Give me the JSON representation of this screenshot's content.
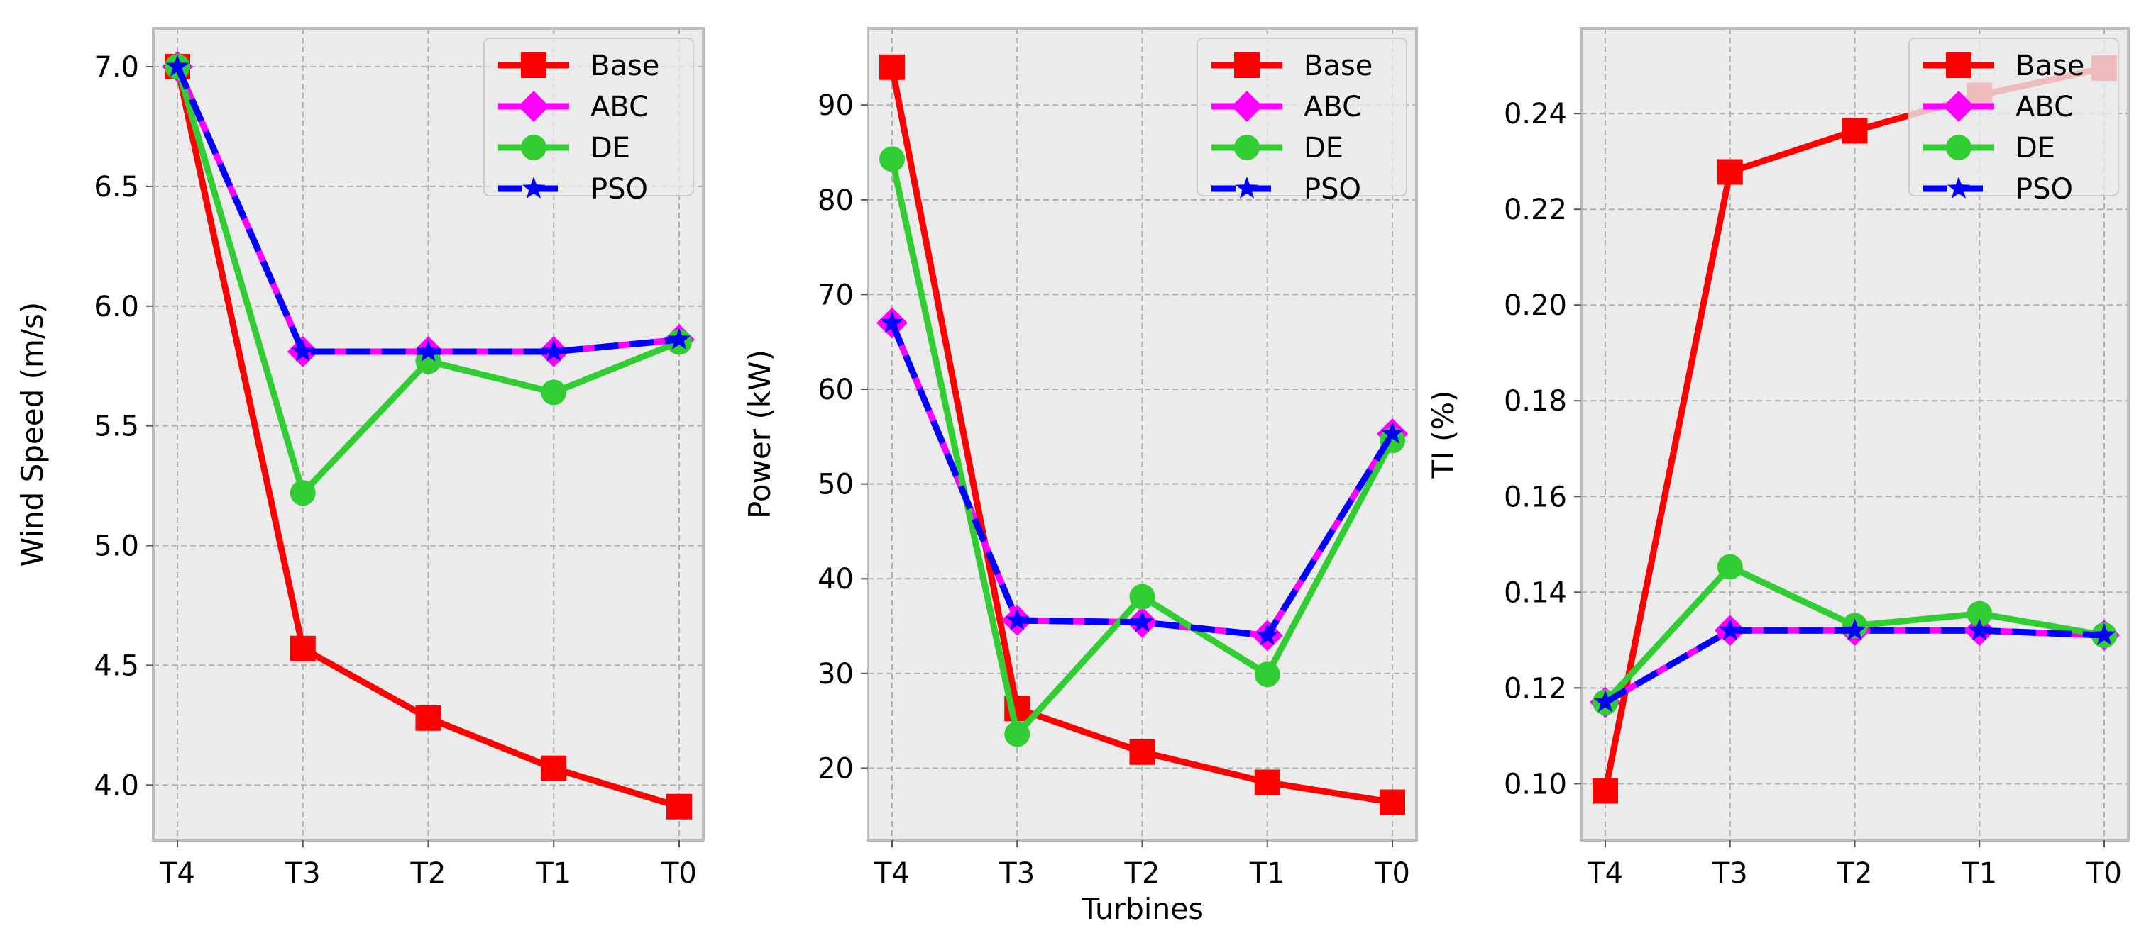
{
  "figure": {
    "xlabel_shared": "Turbines"
  },
  "colors": {
    "background": "#ebebeb",
    "grid": "#b0b0b0",
    "spine": "#bcbcbc",
    "Base": "#ff0000",
    "ABC": "#ff00ff",
    "DE": "#32cd32",
    "PSO": "#0000ff"
  },
  "legend_labels": [
    "Base",
    "ABC",
    "DE",
    "PSO"
  ],
  "chart_data": [
    {
      "type": "line",
      "title": "",
      "xlabel": "",
      "ylabel": "Wind Speed (m/s)",
      "categories": [
        "T4",
        "T3",
        "T2",
        "T1",
        "T0"
      ],
      "ylim": [
        3.77,
        7.16
      ],
      "yticks": [
        "4.0",
        "4.5",
        "5.0",
        "5.5",
        "6.0",
        "6.5",
        "7.0"
      ],
      "ytick_values": [
        4.0,
        4.5,
        5.0,
        5.5,
        6.0,
        6.5,
        7.0
      ],
      "grid": true,
      "legend": "top-right",
      "series": [
        {
          "name": "Base",
          "marker": "square",
          "style": "solid",
          "values": [
            7.0,
            4.57,
            4.28,
            4.07,
            3.91
          ]
        },
        {
          "name": "ABC",
          "marker": "diamond",
          "style": "solid",
          "values": [
            7.0,
            5.81,
            5.81,
            5.81,
            5.86
          ]
        },
        {
          "name": "DE",
          "marker": "circle",
          "style": "solid",
          "values": [
            7.0,
            5.22,
            5.77,
            5.64,
            5.85
          ]
        },
        {
          "name": "PSO",
          "marker": "star",
          "style": "dashed",
          "values": [
            7.0,
            5.81,
            5.81,
            5.81,
            5.86
          ]
        }
      ]
    },
    {
      "type": "line",
      "title": "",
      "xlabel": "Turbines",
      "ylabel": "Power (kW)",
      "categories": [
        "T4",
        "T3",
        "T2",
        "T1",
        "T0"
      ],
      "ylim": [
        12.4,
        98.1
      ],
      "yticks": [
        "20",
        "30",
        "40",
        "50",
        "60",
        "70",
        "80",
        "90"
      ],
      "ytick_values": [
        20,
        30,
        40,
        50,
        60,
        70,
        80,
        90
      ],
      "grid": true,
      "legend": "top-right",
      "series": [
        {
          "name": "Base",
          "marker": "square",
          "style": "solid",
          "values": [
            94.0,
            26.3,
            21.7,
            18.5,
            16.4
          ]
        },
        {
          "name": "ABC",
          "marker": "diamond",
          "style": "solid",
          "values": [
            67.0,
            35.6,
            35.4,
            34.0,
            55.3
          ]
        },
        {
          "name": "DE",
          "marker": "circle",
          "style": "solid",
          "values": [
            84.3,
            23.6,
            38.1,
            29.9,
            54.6
          ]
        },
        {
          "name": "PSO",
          "marker": "star",
          "style": "dashed",
          "values": [
            67.0,
            35.6,
            35.4,
            34.0,
            55.3
          ]
        }
      ]
    },
    {
      "type": "line",
      "title": "",
      "xlabel": "",
      "ylabel": "TI (%)",
      "categories": [
        "T4",
        "T3",
        "T2",
        "T1",
        "T0"
      ],
      "ylim": [
        0.0882,
        0.2578
      ],
      "yticks": [
        "0.10",
        "0.12",
        "0.14",
        "0.16",
        "0.18",
        "0.20",
        "0.22",
        "0.24"
      ],
      "ytick_values": [
        0.1,
        0.12,
        0.14,
        0.16,
        0.18,
        0.2,
        0.22,
        0.24
      ],
      "grid": true,
      "legend": "top-right",
      "series": [
        {
          "name": "Base",
          "marker": "square",
          "style": "solid",
          "values": [
            0.0985,
            0.2278,
            0.2364,
            0.2438,
            0.2495
          ]
        },
        {
          "name": "ABC",
          "marker": "diamond",
          "style": "solid",
          "values": [
            0.117,
            0.132,
            0.132,
            0.132,
            0.131
          ]
        },
        {
          "name": "DE",
          "marker": "circle",
          "style": "solid",
          "values": [
            0.117,
            0.1453,
            0.133,
            0.1355,
            0.131
          ]
        },
        {
          "name": "PSO",
          "marker": "star",
          "style": "dashed",
          "values": [
            0.117,
            0.132,
            0.132,
            0.132,
            0.131
          ]
        }
      ]
    }
  ]
}
